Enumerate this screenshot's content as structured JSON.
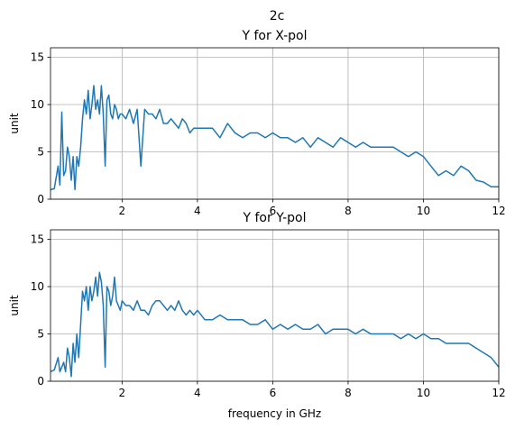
{
  "figure": {
    "suptitle": "2c"
  },
  "chart_data": [
    {
      "type": "line",
      "title": "Y for X-pol",
      "xlabel": "",
      "ylabel": "unit",
      "xlim": [
        0.1,
        12
      ],
      "ylim": [
        0,
        16
      ],
      "xticks": [
        2,
        4,
        6,
        8,
        10,
        12
      ],
      "yticks": [
        0,
        5,
        10,
        15
      ],
      "grid": true,
      "line_color": "#1f77b4",
      "x": [
        0.1,
        0.2,
        0.3,
        0.35,
        0.4,
        0.45,
        0.5,
        0.55,
        0.6,
        0.65,
        0.7,
        0.75,
        0.8,
        0.85,
        0.9,
        0.95,
        1.0,
        1.05,
        1.1,
        1.15,
        1.2,
        1.25,
        1.3,
        1.35,
        1.4,
        1.45,
        1.5,
        1.55,
        1.6,
        1.65,
        1.7,
        1.75,
        1.8,
        1.85,
        1.9,
        1.95,
        2.0,
        2.1,
        2.2,
        2.3,
        2.4,
        2.5,
        2.6,
        2.7,
        2.8,
        2.9,
        3.0,
        3.1,
        3.2,
        3.3,
        3.4,
        3.5,
        3.6,
        3.7,
        3.8,
        3.9,
        4.0,
        4.2,
        4.4,
        4.6,
        4.8,
        5.0,
        5.2,
        5.4,
        5.6,
        5.8,
        6.0,
        6.2,
        6.4,
        6.6,
        6.8,
        7.0,
        7.2,
        7.4,
        7.6,
        7.8,
        8.0,
        8.2,
        8.4,
        8.6,
        8.8,
        9.0,
        9.2,
        9.4,
        9.6,
        9.8,
        10.0,
        10.2,
        10.4,
        10.6,
        10.8,
        11.0,
        11.2,
        11.4,
        11.6,
        11.8,
        12.0
      ],
      "y": [
        1.0,
        1.1,
        3.5,
        1.5,
        9.2,
        2.5,
        3.0,
        5.5,
        4.5,
        2.0,
        4.5,
        1.0,
        4.5,
        3.5,
        5.5,
        8.5,
        10.5,
        9.0,
        11.5,
        8.5,
        10.0,
        12.0,
        9.5,
        10.5,
        9.0,
        12.0,
        9.0,
        3.5,
        10.5,
        11.0,
        9.0,
        8.5,
        10.0,
        9.5,
        8.5,
        9.0,
        9.0,
        8.5,
        9.5,
        8.0,
        9.5,
        3.5,
        9.5,
        9.0,
        9.0,
        8.5,
        9.5,
        8.0,
        8.0,
        8.5,
        8.0,
        7.5,
        8.5,
        8.0,
        7.0,
        7.5,
        7.5,
        7.5,
        7.5,
        6.5,
        8.0,
        7.0,
        6.5,
        7.0,
        7.0,
        6.5,
        7.0,
        6.5,
        6.5,
        6.0,
        6.5,
        5.5,
        6.5,
        6.0,
        5.5,
        6.5,
        6.0,
        5.5,
        6.0,
        5.5,
        5.5,
        5.5,
        5.5,
        5.0,
        4.5,
        5.0,
        4.5,
        3.5,
        2.5,
        3.0,
        2.5,
        3.5,
        3.0,
        2.0,
        1.8,
        1.3,
        1.3
      ]
    },
    {
      "type": "line",
      "title": "Y for Y-pol",
      "xlabel": "frequency in GHz",
      "ylabel": "unit",
      "xlim": [
        0.1,
        12
      ],
      "ylim": [
        0,
        16
      ],
      "xticks": [
        2,
        4,
        6,
        8,
        10,
        12
      ],
      "yticks": [
        0,
        5,
        10,
        15
      ],
      "grid": true,
      "line_color": "#1f77b4",
      "x": [
        0.1,
        0.2,
        0.3,
        0.35,
        0.4,
        0.45,
        0.5,
        0.55,
        0.6,
        0.65,
        0.7,
        0.75,
        0.8,
        0.85,
        0.9,
        0.95,
        1.0,
        1.05,
        1.1,
        1.15,
        1.2,
        1.25,
        1.3,
        1.35,
        1.4,
        1.45,
        1.5,
        1.55,
        1.6,
        1.65,
        1.7,
        1.75,
        1.8,
        1.85,
        1.9,
        1.95,
        2.0,
        2.1,
        2.2,
        2.3,
        2.4,
        2.5,
        2.6,
        2.7,
        2.8,
        2.9,
        3.0,
        3.1,
        3.2,
        3.3,
        3.4,
        3.5,
        3.6,
        3.7,
        3.8,
        3.9,
        4.0,
        4.2,
        4.4,
        4.6,
        4.8,
        5.0,
        5.2,
        5.4,
        5.6,
        5.8,
        6.0,
        6.2,
        6.4,
        6.6,
        6.8,
        7.0,
        7.2,
        7.4,
        7.6,
        7.8,
        8.0,
        8.2,
        8.4,
        8.6,
        8.8,
        9.0,
        9.2,
        9.4,
        9.6,
        9.8,
        10.0,
        10.2,
        10.4,
        10.6,
        10.8,
        11.0,
        11.2,
        11.4,
        11.6,
        11.8,
        12.0
      ],
      "y": [
        1.0,
        1.2,
        2.5,
        1.0,
        1.5,
        2.0,
        1.0,
        3.5,
        2.5,
        0.5,
        4.0,
        2.0,
        5.0,
        2.5,
        6.0,
        9.5,
        8.5,
        10.0,
        7.5,
        10.0,
        8.5,
        9.5,
        11.0,
        9.0,
        11.5,
        10.5,
        8.0,
        1.5,
        10.0,
        9.5,
        8.0,
        9.0,
        11.0,
        8.5,
        8.0,
        7.5,
        8.5,
        8.0,
        8.0,
        7.5,
        8.5,
        7.5,
        7.5,
        7.0,
        8.0,
        8.5,
        8.5,
        8.0,
        7.5,
        8.0,
        7.5,
        8.5,
        7.5,
        7.0,
        7.5,
        7.0,
        7.5,
        6.5,
        6.5,
        7.0,
        6.5,
        6.5,
        6.5,
        6.0,
        6.0,
        6.5,
        5.5,
        6.0,
        5.5,
        6.0,
        5.5,
        5.5,
        6.0,
        5.0,
        5.5,
        5.5,
        5.5,
        5.0,
        5.5,
        5.0,
        5.0,
        5.0,
        5.0,
        4.5,
        5.0,
        4.5,
        5.0,
        4.5,
        4.5,
        4.0,
        4.0,
        4.0,
        4.0,
        3.5,
        3.0,
        2.5,
        1.5
      ]
    }
  ]
}
